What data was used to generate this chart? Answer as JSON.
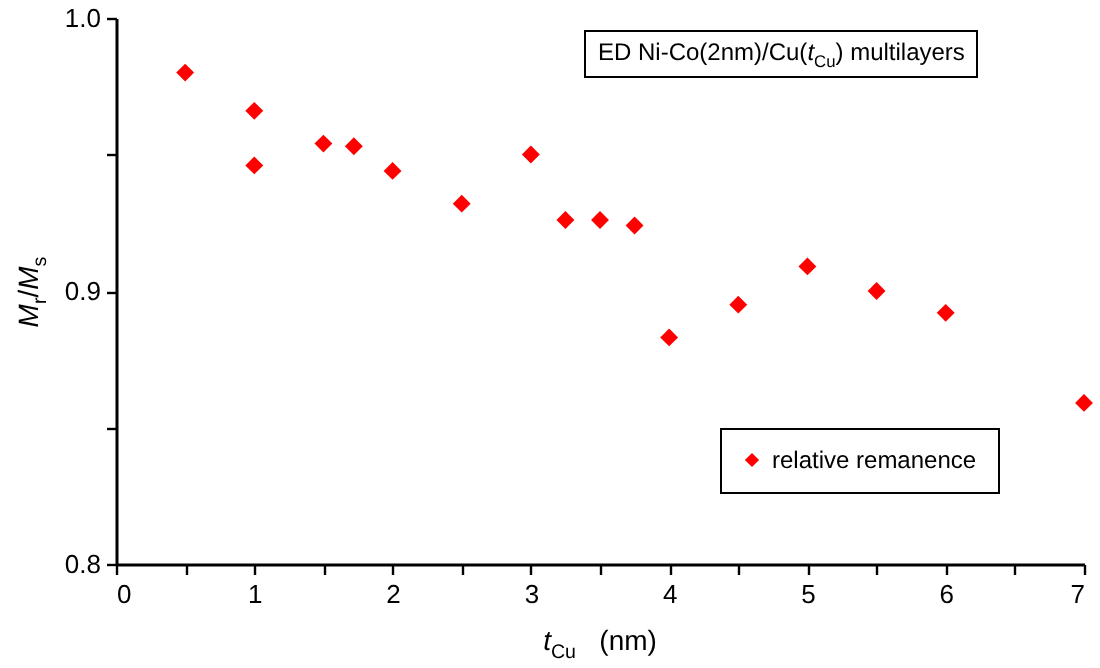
{
  "chart_data": {
    "type": "scatter",
    "xlabel": "t$_{Cu}$  (nm)",
    "ylabel": "M$_{r}$/M$_{s}$",
    "annotations": [
      "ED Ni-Co(2nm)/Cu(t$_{Cu}$) multilayers"
    ],
    "series": [
      {
        "name": "relative remanence",
        "color": "#ff0000",
        "x": [
          0.5,
          1,
          1,
          1.5,
          1.72,
          2,
          2.5,
          3,
          3.25,
          3.5,
          3.75,
          4,
          4.5,
          5,
          5.5,
          6,
          7
        ],
        "values": [
          0.98,
          0.966,
          0.946,
          0.954,
          0.953,
          0.944,
          0.932,
          0.95,
          0.926,
          0.926,
          0.924,
          0.883,
          0.895,
          0.909,
          0.9,
          0.892,
          0.859
        ]
      }
    ],
    "xlim": [
      0,
      7
    ],
    "xticks": [
      0,
      {
        "value": 0.5,
        "label": null
      },
      1,
      {
        "value": 1.5,
        "label": null
      },
      2,
      {
        "value": 2.5,
        "label": null
      },
      3,
      {
        "value": 3.5,
        "label": null
      },
      4,
      {
        "value": 4.5,
        "label": null
      },
      5,
      {
        "value": 5.5,
        "label": null
      },
      6,
      {
        "value": 6.5,
        "label": null
      },
      7
    ],
    "ylim": [
      0.8,
      1.0
    ],
    "yticks": [
      {
        "value": 0.8,
        "label": "0.8"
      },
      {
        "value": 0.85,
        "label": null
      },
      {
        "value": 0.9,
        "label": "0.9"
      },
      {
        "value": 0.95,
        "label": null
      },
      {
        "value": 1.0,
        "label": "1.0"
      }
    ],
    "grid": false,
    "legend": "bottom right",
    "marker": "diamond"
  }
}
